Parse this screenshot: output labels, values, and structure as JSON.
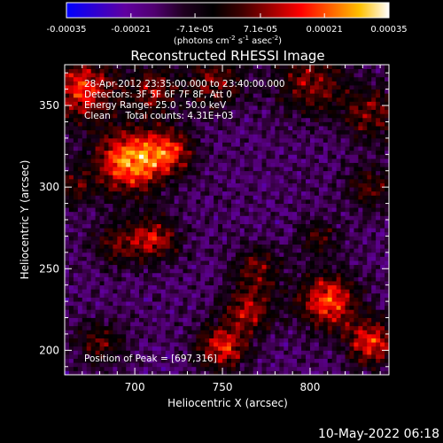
{
  "colorbar": {
    "tick_labels": [
      "-0.00035",
      "-0.00021",
      "-7.1e-05",
      "7.1e-05",
      "0.00021",
      "0.00035"
    ],
    "tick_values": [
      -0.00035,
      -0.00021,
      -7.1e-05,
      7.1e-05,
      0.00021,
      0.00035
    ],
    "unit_label_parts": {
      "prefix": "(photons cm",
      "sup1": "-2",
      "mid1": " s",
      "sup2": "-1",
      "mid2": " asec",
      "sup3": "-2",
      "suffix": ")"
    },
    "range": [
      -0.00035,
      0.00035
    ],
    "colors": [
      "#0000ff",
      "#3000d0",
      "#6000a0",
      "#500070",
      "#200020",
      "#000000",
      "#400000",
      "#a00000",
      "#ff0000",
      "#ff6000",
      "#ffc000",
      "#ffffff"
    ]
  },
  "chart_data": {
    "type": "heatmap",
    "title": "Reconstructed RHESSI Image",
    "xlabel": "Heliocentric X (arcsec)",
    "ylabel": "Heliocentric Y (arcsec)",
    "xlim": [
      660,
      845
    ],
    "ylim": [
      185,
      375
    ],
    "x_ticks": [
      700,
      750,
      800
    ],
    "y_ticks": [
      200,
      250,
      300,
      350
    ],
    "grid": false,
    "info_lines": [
      "28-Apr-2012 23:35:00.000 to 23:40:00.000",
      "Detectors: 3F 5F 6F 7F 8F, Att 0",
      "Energy Range: 25.0 - 50.0 keV",
      "Clean     Total counts: 4.31E+03"
    ],
    "peak_label": "Position of Peak = [697,316]",
    "peak": {
      "x": 697,
      "y": 316
    },
    "bright_regions": [
      {
        "x": 697,
        "y": 316,
        "level": 1.0,
        "spread": 14
      },
      {
        "x": 720,
        "y": 322,
        "level": 0.65,
        "spread": 10
      },
      {
        "x": 670,
        "y": 360,
        "level": 0.75,
        "spread": 14
      },
      {
        "x": 710,
        "y": 360,
        "level": 0.55,
        "spread": 10
      },
      {
        "x": 745,
        "y": 365,
        "level": 0.5,
        "spread": 12
      },
      {
        "x": 800,
        "y": 365,
        "level": 0.55,
        "spread": 14
      },
      {
        "x": 835,
        "y": 345,
        "level": 0.5,
        "spread": 12
      },
      {
        "x": 835,
        "y": 300,
        "level": 0.45,
        "spread": 10
      },
      {
        "x": 712,
        "y": 268,
        "level": 0.6,
        "spread": 10
      },
      {
        "x": 690,
        "y": 265,
        "level": 0.45,
        "spread": 10
      },
      {
        "x": 805,
        "y": 270,
        "level": 0.4,
        "spread": 8
      },
      {
        "x": 770,
        "y": 250,
        "level": 0.45,
        "spread": 10
      },
      {
        "x": 765,
        "y": 225,
        "level": 0.6,
        "spread": 10
      },
      {
        "x": 810,
        "y": 230,
        "level": 0.85,
        "spread": 12
      },
      {
        "x": 835,
        "y": 205,
        "level": 0.75,
        "spread": 10
      },
      {
        "x": 750,
        "y": 202,
        "level": 0.75,
        "spread": 10
      },
      {
        "x": 680,
        "y": 205,
        "level": 0.45,
        "spread": 10
      },
      {
        "x": 665,
        "y": 300,
        "level": 0.4,
        "spread": 8
      }
    ]
  },
  "footer": {
    "timestamp": "10-May-2022 06:18"
  }
}
